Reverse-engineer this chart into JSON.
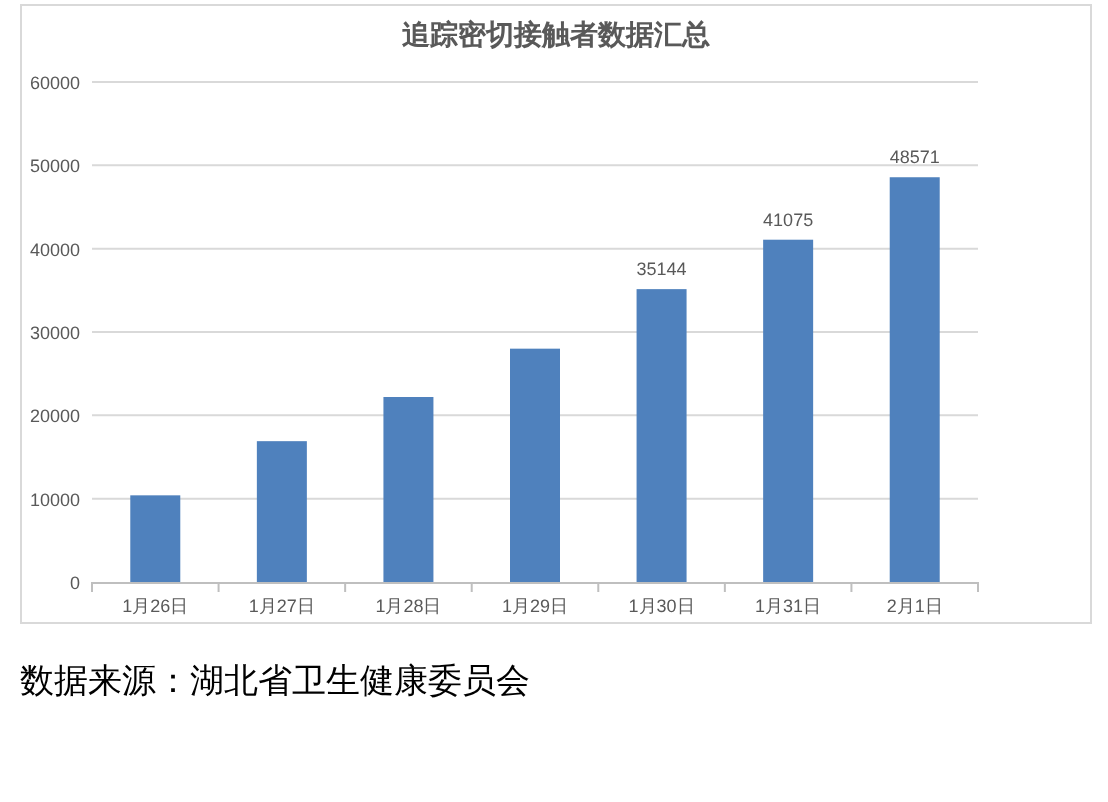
{
  "chart_data": {
    "type": "bar",
    "title": "追踪密切接触者数据汇总",
    "categories": [
      "1月26日",
      "1月27日",
      "1月28日",
      "1月29日",
      "1月30日",
      "1月31日",
      "2月1日"
    ],
    "values": [
      10400,
      16900,
      22200,
      28000,
      35144,
      41075,
      48571
    ],
    "value_labels": [
      null,
      null,
      null,
      null,
      "35144",
      "41075",
      "48571"
    ],
    "color": "#4f81bd",
    "ylim": [
      0,
      60000
    ],
    "yticks": [
      0,
      10000,
      20000,
      30000,
      40000,
      50000,
      60000
    ],
    "grid": "y",
    "annotations": [
      "数据来源：湖北省卫生健康委员会"
    ]
  }
}
